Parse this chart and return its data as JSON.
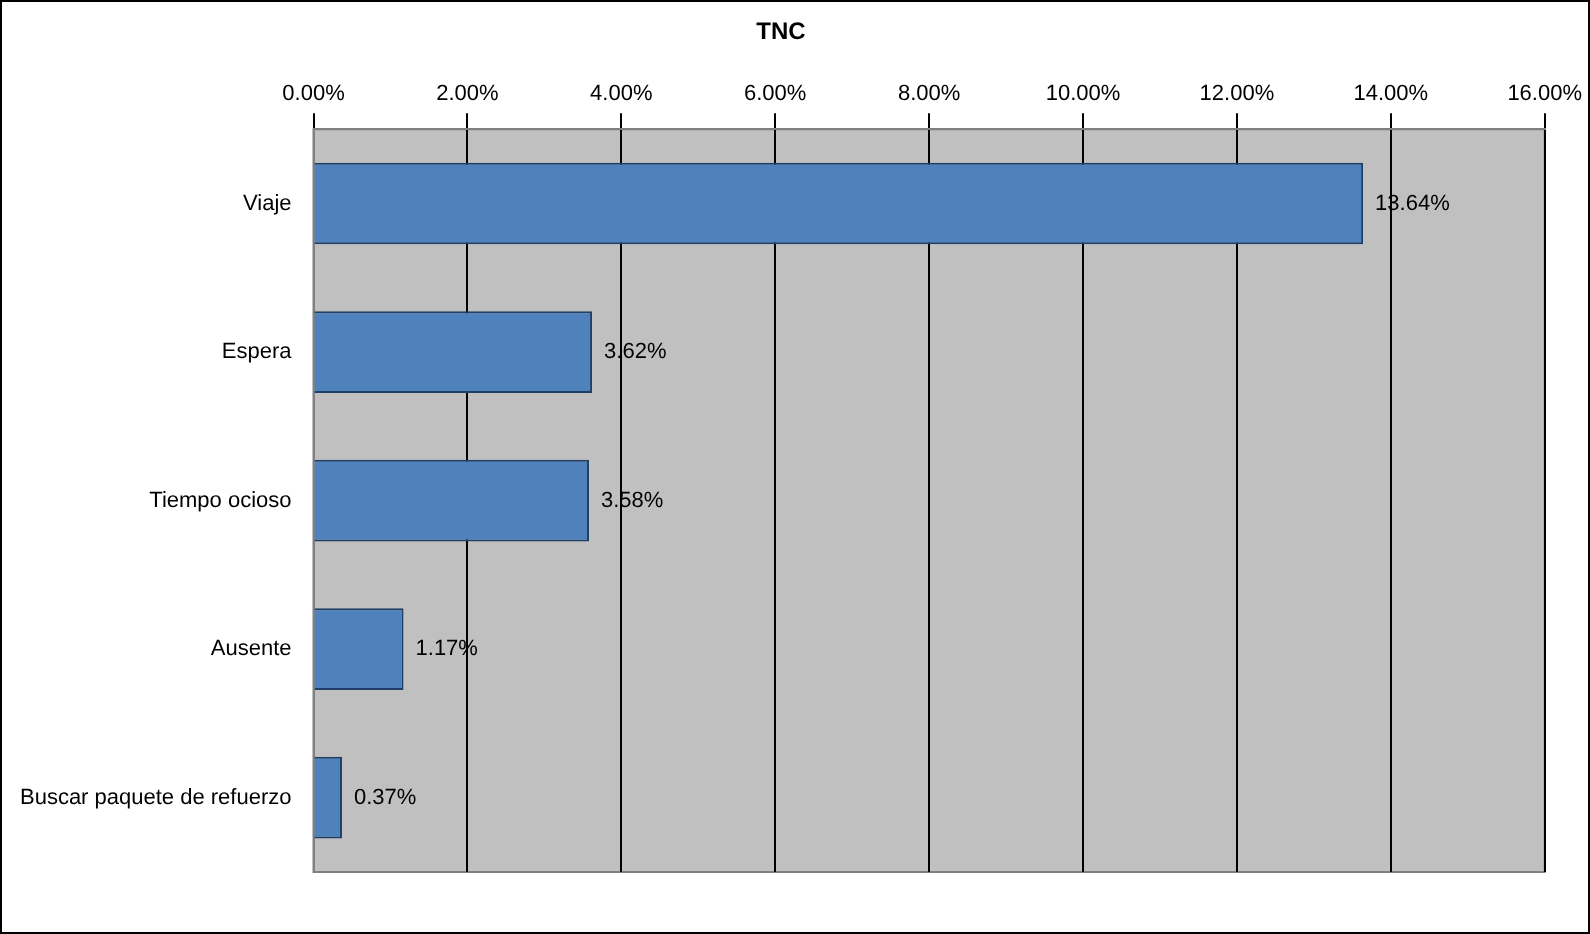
{
  "chart_data": {
    "type": "bar",
    "orientation": "horizontal",
    "title": "TNC",
    "categories": [
      "Viaje",
      "Espera",
      "Tiempo ocioso",
      "Ausente",
      "Buscar paquete de refuerzo"
    ],
    "values": [
      13.64,
      3.62,
      3.58,
      1.17,
      0.37
    ],
    "value_labels": [
      "13.64%",
      "3.62%",
      "3.58%",
      "1.17%",
      "0.37%"
    ],
    "color": "#4f81bd",
    "xlim": [
      0,
      16
    ],
    "xticks": [
      {
        "value": 0,
        "label": "0.00%"
      },
      {
        "value": 2,
        "label": "2.00%"
      },
      {
        "value": 4,
        "label": "4.00%"
      },
      {
        "value": 6,
        "label": "6.00%"
      },
      {
        "value": 8,
        "label": "8.00%"
      },
      {
        "value": 10,
        "label": "10.00%"
      },
      {
        "value": 12,
        "label": "12.00%"
      },
      {
        "value": 14,
        "label": "14.00%"
      },
      {
        "value": 16,
        "label": "16.00%"
      }
    ],
    "grid": "x",
    "legend": false
  }
}
